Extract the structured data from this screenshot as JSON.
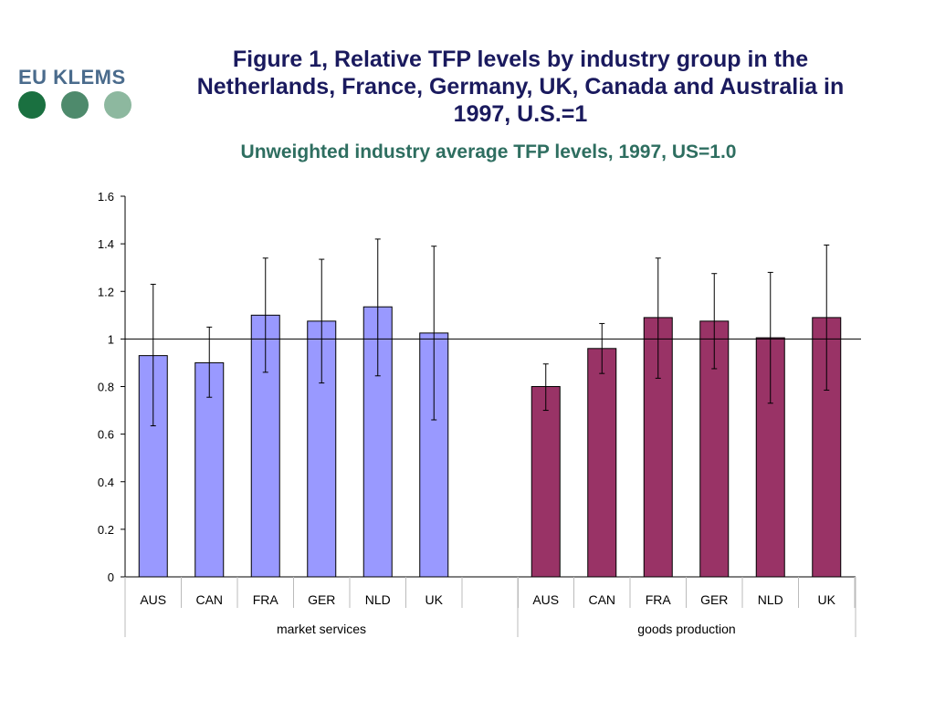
{
  "logo": {
    "text": "EU KLEMS",
    "dot_colors": [
      "#1a7040",
      "#4e8a6c",
      "#8db89f"
    ]
  },
  "header": {
    "title": "Figure 1, Relative TFP levels by industry group in the Netherlands, France, Germany, UK, Canada and Australia in 1997, U.S.=1"
  },
  "chart_data": {
    "type": "bar",
    "title": "Unweighted industry average TFP levels, 1997, US=1.0",
    "xlabel": "",
    "ylabel": "",
    "ylim": [
      0,
      1.6
    ],
    "yticks": [
      0,
      0.2,
      0.4,
      0.6,
      0.8,
      1,
      1.2,
      1.4,
      1.6
    ],
    "ytick_labels": [
      "0",
      "0.2",
      "0.4",
      "0.6",
      "0.8",
      "1",
      "1.2",
      "1.4",
      "1.6"
    ],
    "reference_line": 1,
    "grid": false,
    "legend": "none",
    "groups": [
      {
        "label": "market services",
        "color": "#9999ff",
        "categories": [
          "AUS",
          "CAN",
          "FRA",
          "GER",
          "NLD",
          "UK"
        ],
        "values": [
          0.93,
          0.9,
          1.1,
          1.075,
          1.135,
          1.025
        ],
        "error_low": [
          0.635,
          0.755,
          0.86,
          0.815,
          0.845,
          0.66
        ],
        "error_high": [
          1.23,
          1.05,
          1.34,
          1.335,
          1.42,
          1.39
        ]
      },
      {
        "label": "goods production",
        "color": "#993366",
        "categories": [
          "AUS",
          "CAN",
          "FRA",
          "GER",
          "NLD",
          "UK"
        ],
        "values": [
          0.8,
          0.96,
          1.09,
          1.075,
          1.005,
          1.09
        ],
        "error_low": [
          0.7,
          0.855,
          0.835,
          0.875,
          0.73,
          0.785
        ],
        "error_high": [
          0.895,
          1.065,
          1.34,
          1.275,
          1.28,
          1.395
        ]
      }
    ]
  }
}
